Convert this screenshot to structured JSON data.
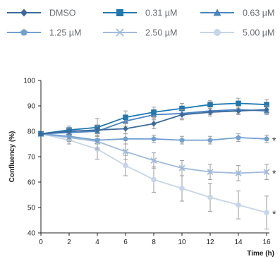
{
  "chart_data": {
    "type": "line",
    "xlabel": "Time (h)",
    "ylabel": "Confluency (%)",
    "xlim": [
      0,
      16
    ],
    "ylim": [
      40,
      100
    ],
    "x_ticks": [
      0,
      2,
      4,
      6,
      8,
      10,
      12,
      14,
      16
    ],
    "y_ticks": [
      40,
      50,
      60,
      70,
      80,
      90,
      100
    ],
    "grid": false,
    "legend_position": "top",
    "x": [
      0,
      2,
      4,
      6,
      8,
      10,
      12,
      14,
      16
    ],
    "series": [
      {
        "name": "DMSO",
        "marker": "diamond",
        "color": "#3b6a9c",
        "values": [
          79,
          80,
          80.5,
          81,
          83,
          86.5,
          87.5,
          88,
          88.5
        ],
        "errors": [
          0.5,
          1,
          2,
          2,
          2,
          2,
          1.5,
          1.5,
          1.5
        ]
      },
      {
        "name": "0.31 µM",
        "marker": "square",
        "color": "#1f78b0",
        "values": [
          79,
          80.5,
          81.5,
          85.5,
          87.5,
          89,
          90.5,
          91,
          90.5
        ],
        "errors": [
          0.5,
          1.5,
          3.5,
          2.5,
          2,
          2,
          1.5,
          2,
          2
        ]
      },
      {
        "name": "0.63 µM",
        "marker": "triangle",
        "color": "#4a84c0",
        "values": [
          79,
          79.5,
          80,
          84,
          86.5,
          87,
          88,
          88.5,
          88
        ],
        "errors": [
          0.5,
          1,
          2,
          2,
          2,
          2,
          1.5,
          1.5,
          1.5
        ]
      },
      {
        "name": "1.25 µM",
        "marker": "pentagon",
        "color": "#72a0d0",
        "values": [
          79,
          78,
          76.5,
          77,
          77,
          76.5,
          76.5,
          77.5,
          77
        ],
        "errors": [
          0.5,
          1,
          1.5,
          2,
          1.5,
          1.5,
          1.5,
          1.5,
          1.5
        ]
      },
      {
        "name": "2.50 µM",
        "marker": "x",
        "color": "#9fbbdb",
        "values": [
          79,
          77.5,
          76,
          72,
          68.5,
          65.5,
          64,
          63.5,
          64
        ],
        "errors": [
          0.5,
          1.5,
          3,
          3,
          3,
          3,
          3,
          3,
          3
        ]
      },
      {
        "name": "5.00 µM",
        "marker": "circle",
        "color": "#c6d5e8",
        "values": [
          79,
          76.5,
          73,
          66.5,
          61,
          57.5,
          54,
          51,
          48
        ],
        "errors": [
          0.5,
          1.5,
          4,
          4,
          5,
          5,
          5.5,
          5.5,
          6.5
        ]
      }
    ],
    "annotations": [
      {
        "series": "1.25 µM",
        "text": "*"
      },
      {
        "series": "2.50 µM",
        "text": "*"
      },
      {
        "series": "5.00 µM",
        "text": "*"
      }
    ]
  }
}
